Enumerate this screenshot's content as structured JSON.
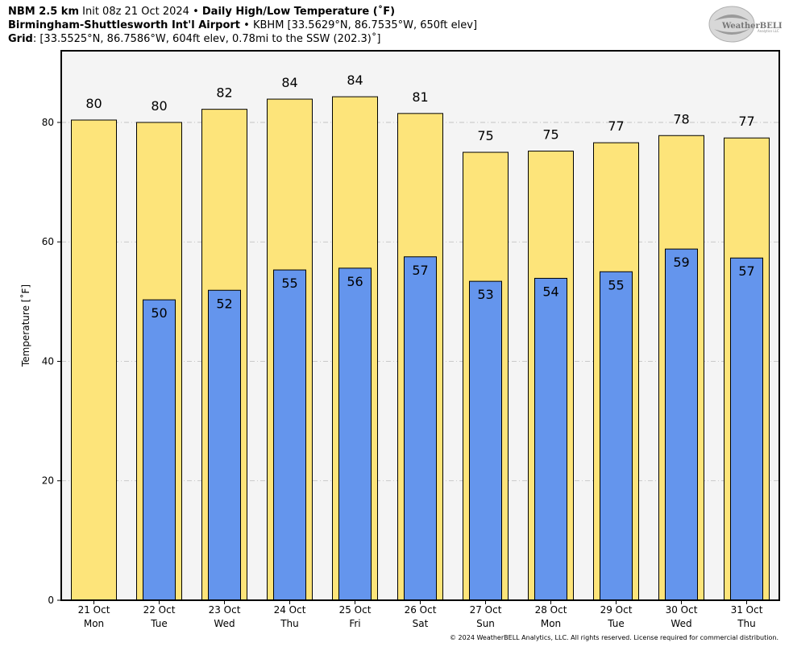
{
  "header": {
    "line1_model": "NBM 2.5 km",
    "line1_init": "Init 08z 21 Oct 2024",
    "line1_sep": "•",
    "line1_product": "Daily High/Low Temperature (˚F)",
    "line2_station": "Birmingham-Shuttlesworth Int'l Airport",
    "line2_sep": "•",
    "line2_info": "KBHM [33.5629°N, 86.7535°W, 650ft elev]",
    "line3_label": "Grid",
    "line3_info": ": [33.5525°N, 86.7586°W, 604ft elev, 0.78mi to the SSW (202.3)˚]"
  },
  "logo": {
    "text": "WeatherBELL",
    "subtext": "Analytics LLC"
  },
  "copyright": "© 2024 WeatherBELL Analytics, LLC. All rights reserved. License required for commercial distribution.",
  "chart_data": {
    "type": "bar",
    "ylabel": "Temperature [˚F]",
    "xlabel": "",
    "ylim": [
      0,
      92
    ],
    "yticks": [
      0,
      20,
      40,
      60,
      80
    ],
    "grid": true,
    "categories": [
      [
        "21 Oct",
        "Mon"
      ],
      [
        "22 Oct",
        "Tue"
      ],
      [
        "23 Oct",
        "Wed"
      ],
      [
        "24 Oct",
        "Thu"
      ],
      [
        "25 Oct",
        "Fri"
      ],
      [
        "26 Oct",
        "Sat"
      ],
      [
        "27 Oct",
        "Sun"
      ],
      [
        "28 Oct",
        "Mon"
      ],
      [
        "29 Oct",
        "Tue"
      ],
      [
        "30 Oct",
        "Wed"
      ],
      [
        "31 Oct",
        "Thu"
      ]
    ],
    "series": [
      {
        "key": "high",
        "color": "#fde47a",
        "values": [
          80.4,
          80.0,
          82.2,
          83.9,
          84.3,
          81.5,
          75.0,
          75.2,
          76.6,
          77.8,
          77.4
        ],
        "labels": [
          "80",
          "80",
          "82",
          "84",
          "84",
          "81",
          "75",
          "75",
          "77",
          "78",
          "77"
        ]
      },
      {
        "key": "low",
        "color": "#6495ed",
        "values": [
          null,
          50.3,
          51.9,
          55.3,
          55.6,
          57.5,
          53.4,
          53.9,
          55.0,
          58.8,
          57.3
        ],
        "labels": [
          "",
          "50",
          "52",
          "55",
          "56",
          "57",
          "53",
          "54",
          "55",
          "59",
          "57"
        ]
      }
    ],
    "colors": {
      "plot_bg": "#f4f4f4",
      "grid": "#bbbbbb"
    }
  }
}
